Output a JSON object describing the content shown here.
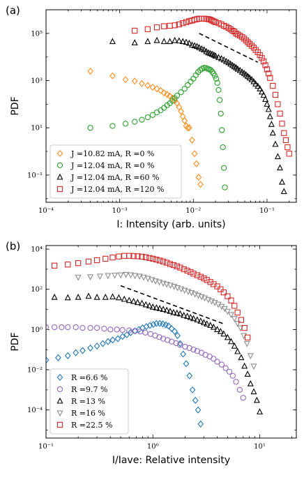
{
  "colors": {
    "orange": "#ff8c1a",
    "green": "#2ca02c",
    "black": "#000000",
    "red": "#d62728",
    "blue": "#1f77b4",
    "purple": "#9467bd",
    "gray": "#8c8c8c"
  },
  "chart_data": [
    {
      "type": "scatter",
      "panel_label": "(a)",
      "xlabel": "I: Intensity (arb. units)",
      "ylabel": "PDF",
      "xscale": "log",
      "yscale": "log",
      "xlim": [
        0.0001,
        0.25
      ],
      "ylim": [
        0.007,
        1000000
      ],
      "xticks": [
        {
          "v": 0.0001,
          "label": "10⁻⁴"
        },
        {
          "v": 0.001,
          "label": "10⁻³"
        },
        {
          "v": 0.01,
          "label": "10⁻²"
        },
        {
          "v": 0.1,
          "label": "10⁻¹"
        }
      ],
      "yticks": [
        {
          "v": 0.1,
          "label": "10⁻¹"
        },
        {
          "v": 10,
          "label": "10¹"
        },
        {
          "v": 1000,
          "label": "10³"
        },
        {
          "v": 100000,
          "label": "10⁵"
        }
      ],
      "legend_position": "lower-left",
      "guide_line": {
        "x": [
          0.012,
          0.075
        ],
        "y": [
          100000,
          6000
        ]
      },
      "series": [
        {
          "name": "J =10.82 mA, R =0 %",
          "marker": "diamond",
          "color": "orange",
          "x": [
            0.0004,
            0.0008,
            0.0012,
            0.0016,
            0.002,
            0.0024,
            0.0028,
            0.0032,
            0.0036,
            0.004,
            0.0044,
            0.0048,
            0.0052,
            0.0056,
            0.006,
            0.0064,
            0.0068,
            0.0072,
            0.0076,
            0.008,
            0.0084,
            0.0088,
            0.0096,
            0.0104,
            0.011,
            0.0118,
            0.0125
          ],
          "y": [
            2500,
            1600,
            1100,
            950,
            750,
            620,
            520,
            450,
            380,
            300,
            260,
            220,
            180,
            140,
            110,
            75,
            50,
            30,
            20,
            12,
            10,
            10,
            3,
            0.8,
            0.3,
            0.08,
            0.04
          ]
        },
        {
          "name": "J =12.04 mA, R =0 %",
          "marker": "circle",
          "color": "green",
          "x": [
            0.0004,
            0.0008,
            0.0012,
            0.0016,
            0.002,
            0.0024,
            0.0028,
            0.0032,
            0.0036,
            0.004,
            0.0044,
            0.0048,
            0.0052,
            0.0056,
            0.006,
            0.0068,
            0.0076,
            0.0084,
            0.0092,
            0.01,
            0.0108,
            0.0116,
            0.0124,
            0.0132,
            0.014,
            0.0148,
            0.0156,
            0.0164,
            0.0172,
            0.018,
            0.0188,
            0.0196,
            0.0204,
            0.0212,
            0.022,
            0.0228,
            0.0236,
            0.0244,
            0.0252,
            0.026,
            0.0268
          ],
          "y": [
            10,
            12,
            15,
            18,
            22,
            28,
            35,
            45,
            55,
            70,
            90,
            110,
            140,
            180,
            230,
            320,
            450,
            650,
            900,
            1200,
            1700,
            2300,
            2800,
            3200,
            3500,
            3400,
            3200,
            3000,
            2800,
            2400,
            2000,
            1600,
            1200,
            800,
            400,
            150,
            40,
            8,
            1.5,
            0.2,
            0.03
          ]
        },
        {
          "name": "J =12.04 mA, R =60 %",
          "marker": "triangle",
          "color": "black",
          "x": [
            0.0008,
            0.0016,
            0.0024,
            0.0032,
            0.004,
            0.0048,
            0.0056,
            0.0064,
            0.0072,
            0.008,
            0.0088,
            0.0096,
            0.0104,
            0.0112,
            0.012,
            0.013,
            0.014,
            0.015,
            0.016,
            0.017,
            0.018,
            0.019,
            0.02,
            0.022,
            0.024,
            0.026,
            0.028,
            0.03,
            0.032,
            0.034,
            0.036,
            0.038,
            0.04,
            0.043,
            0.046,
            0.049,
            0.052,
            0.055,
            0.058,
            0.062,
            0.066,
            0.07,
            0.075,
            0.08,
            0.085,
            0.09,
            0.095,
            0.1,
            0.105,
            0.11,
            0.115,
            0.12,
            0.13,
            0.14,
            0.15,
            0.16,
            0.17
          ],
          "y": [
            45000,
            40000,
            45000,
            50000,
            45000,
            45000,
            50000,
            48000,
            45000,
            42000,
            38000,
            32000,
            30000,
            28000,
            25000,
            22000,
            20000,
            17000,
            15000,
            14000,
            13000,
            12000,
            11000,
            9500,
            8500,
            7500,
            6500,
            5800,
            5000,
            4400,
            3900,
            3500,
            3100,
            2700,
            2300,
            2000,
            1750,
            1500,
            1300,
            1100,
            900,
            720,
            580,
            450,
            330,
            240,
            160,
            100,
            60,
            30,
            14,
            6,
            2,
            0.6,
            0.2,
            0.05,
            0.02
          ]
        },
        {
          "name": "J =12.04 mA, R =120 %",
          "marker": "square",
          "color": "red",
          "x": [
            0.0016,
            0.0024,
            0.0032,
            0.004,
            0.0048,
            0.0056,
            0.0064,
            0.0072,
            0.008,
            0.0088,
            0.0096,
            0.0104,
            0.0112,
            0.012,
            0.013,
            0.014,
            0.015,
            0.016,
            0.017,
            0.018,
            0.019,
            0.02,
            0.022,
            0.024,
            0.026,
            0.028,
            0.03,
            0.032,
            0.034,
            0.036,
            0.038,
            0.04,
            0.043,
            0.046,
            0.049,
            0.052,
            0.055,
            0.058,
            0.062,
            0.066,
            0.07,
            0.075,
            0.08,
            0.085,
            0.09,
            0.095,
            0.1,
            0.105,
            0.11,
            0.12,
            0.13,
            0.14,
            0.15,
            0.16,
            0.17,
            0.18,
            0.19,
            0.2
          ],
          "y": [
            130000,
            150000,
            180000,
            200000,
            210000,
            220000,
            240000,
            270000,
            300000,
            330000,
            350000,
            380000,
            400000,
            420000,
            420000,
            420000,
            410000,
            400000,
            380000,
            350000,
            320000,
            300000,
            270000,
            240000,
            210000,
            190000,
            170000,
            150000,
            130000,
            120000,
            100000,
            90000,
            80000,
            70000,
            60000,
            50000,
            42000,
            36000,
            30000,
            25000,
            20000,
            16000,
            12000,
            9000,
            6500,
            4500,
            3000,
            2000,
            1300,
            600,
            250,
            100,
            40,
            15,
            6,
            3,
            1.5,
            0.8
          ]
        }
      ]
    },
    {
      "type": "scatter",
      "panel_label": "(b)",
      "xlabel": "I/Iave: Relative intensity",
      "ylabel": "PDF",
      "xscale": "log",
      "yscale": "log",
      "xlim": [
        0.1,
        22
      ],
      "ylim": [
        4e-06,
        15000
      ],
      "xticks": [
        {
          "v": 0.1,
          "label": "10⁻¹"
        },
        {
          "v": 1,
          "label": "10⁰"
        },
        {
          "v": 10,
          "label": "10¹"
        }
      ],
      "yticks": [
        {
          "v": 0.0001,
          "label": "10⁻⁴"
        },
        {
          "v": 0.01,
          "label": "10⁻²"
        },
        {
          "v": 1,
          "label": "10⁰"
        },
        {
          "v": 100,
          "label": "10²"
        },
        {
          "v": 10000,
          "label": "10⁴"
        }
      ],
      "legend_position": "lower-left",
      "guide_line": {
        "x": [
          0.5,
          4.5
        ],
        "y": [
          150,
          2
        ]
      },
      "series": [
        {
          "name": "R =6.6 %",
          "marker": "diamond",
          "color": "blue",
          "x": [
            0.1,
            0.13,
            0.16,
            0.19,
            0.22,
            0.26,
            0.3,
            0.34,
            0.38,
            0.42,
            0.47,
            0.52,
            0.57,
            0.62,
            0.68,
            0.74,
            0.8,
            0.87,
            0.94,
            1.01,
            1.08,
            1.16,
            1.24,
            1.32,
            1.4,
            1.5,
            1.6,
            1.7,
            1.8,
            1.92,
            2.05,
            2.2,
            2.35,
            2.5,
            2.65,
            2.8
          ],
          "y": [
            0.03,
            0.04,
            0.05,
            0.07,
            0.09,
            0.12,
            0.15,
            0.2,
            0.25,
            0.3,
            0.35,
            0.45,
            0.55,
            0.7,
            0.85,
            1.0,
            1.2,
            1.4,
            1.6,
            1.8,
            2.0,
            2.0,
            1.9,
            1.7,
            1.5,
            1.1,
            0.8,
            0.5,
            0.2,
            0.06,
            0.02,
            0.005,
            0.001,
            0.0003,
            0.0001,
            2e-05
          ]
        },
        {
          "name": "R =9.7 %",
          "marker": "circle",
          "color": "purple",
          "x": [
            0.1,
            0.12,
            0.14,
            0.16,
            0.19,
            0.22,
            0.26,
            0.3,
            0.35,
            0.4,
            0.46,
            0.52,
            0.6,
            0.68,
            0.76,
            0.85,
            0.95,
            1.05,
            1.15,
            1.25,
            1.37,
            1.5,
            1.65,
            1.8,
            2.0,
            2.2,
            2.4,
            2.6,
            2.85,
            3.1,
            3.4,
            3.7,
            4.0,
            4.4,
            4.8,
            5.2,
            5.6,
            6.0,
            6.5,
            7.0
          ],
          "y": [
            1.3,
            1.3,
            1.3,
            1.3,
            1.3,
            1.2,
            1.2,
            1.2,
            1.1,
            1.0,
            1.0,
            0.95,
            0.9,
            0.85,
            0.8,
            0.7,
            0.6,
            0.5,
            0.42,
            0.35,
            0.3,
            0.25,
            0.21,
            0.17,
            0.14,
            0.12,
            0.1,
            0.085,
            0.07,
            0.055,
            0.045,
            0.035,
            0.025,
            0.018,
            0.012,
            0.008,
            0.005,
            0.0025,
            0.001,
            0.0004
          ]
        },
        {
          "name": "R =13 %",
          "marker": "triangle",
          "color": "black",
          "x": [
            0.12,
            0.16,
            0.2,
            0.25,
            0.3,
            0.36,
            0.42,
            0.48,
            0.54,
            0.6,
            0.66,
            0.72,
            0.79,
            0.86,
            0.93,
            1.0,
            1.08,
            1.16,
            1.25,
            1.35,
            1.45,
            1.56,
            1.68,
            1.8,
            1.95,
            2.1,
            2.25,
            2.4,
            2.6,
            2.8,
            3.0,
            3.2,
            3.45,
            3.7,
            4.0,
            4.3,
            4.6,
            5.0,
            5.4,
            5.8,
            6.2,
            6.7,
            7.2,
            7.7,
            8.2,
            8.8,
            9.4,
            10.0
          ],
          "y": [
            40,
            38,
            40,
            45,
            40,
            40,
            42,
            38,
            32,
            28,
            25,
            22,
            20,
            17,
            15,
            13,
            12,
            11,
            10,
            9,
            8,
            7,
            6.5,
            6,
            5,
            4.5,
            4,
            3.5,
            3,
            2.6,
            2.2,
            1.9,
            1.6,
            1.3,
            1.0,
            0.8,
            0.6,
            0.4,
            0.25,
            0.15,
            0.08,
            0.04,
            0.015,
            0.006,
            0.002,
            0.0008,
            0.0003,
            8e-05
          ]
        },
        {
          "name": "R =16 %",
          "marker": "triangle-down",
          "color": "gray",
          "x": [
            0.2,
            0.26,
            0.32,
            0.38,
            0.44,
            0.5,
            0.56,
            0.62,
            0.68,
            0.75,
            0.82,
            0.9,
            0.98,
            1.06,
            1.15,
            1.25,
            1.35,
            1.46,
            1.58,
            1.7,
            1.84,
            1.98,
            2.14,
            2.3,
            2.48,
            2.66,
            2.86,
            3.06,
            3.3,
            3.55,
            3.8,
            4.1,
            4.4,
            4.7,
            5.0,
            5.4,
            5.8,
            6.2,
            6.6,
            7.1,
            7.6,
            8.2,
            8.8
          ],
          "y": [
            400,
            420,
            450,
            480,
            500,
            520,
            550,
            520,
            480,
            450,
            400,
            350,
            300,
            260,
            230,
            200,
            180,
            160,
            140,
            120,
            105,
            90,
            78,
            68,
            58,
            50,
            43,
            37,
            31,
            26,
            22,
            18,
            14,
            11,
            8,
            5.5,
            3.5,
            2,
            1.2,
            0.5,
            0.2,
            0.05,
            0.015
          ]
        },
        {
          "name": "R =22.5 %",
          "marker": "square",
          "color": "red",
          "x": [
            0.12,
            0.16,
            0.2,
            0.25,
            0.3,
            0.36,
            0.42,
            0.48,
            0.54,
            0.6,
            0.66,
            0.72,
            0.79,
            0.86,
            0.93,
            1.0,
            1.08,
            1.16,
            1.25,
            1.35,
            1.45,
            1.56,
            1.68,
            1.8,
            1.95,
            2.1,
            2.25,
            2.4,
            2.6,
            2.8,
            3.0,
            3.2,
            3.45,
            3.7,
            4.0,
            4.3,
            4.6,
            5.0,
            5.4,
            5.8,
            6.2,
            6.7,
            7.2,
            7.7
          ],
          "y": [
            1500,
            1700,
            2000,
            2400,
            2800,
            3300,
            3800,
            4300,
            4600,
            4600,
            4500,
            4400,
            4200,
            3900,
            3600,
            3300,
            3000,
            2700,
            2400,
            2100,
            1800,
            1600,
            1400,
            1200,
            1000,
            850,
            720,
            600,
            500,
            420,
            350,
            290,
            230,
            180,
            140,
            100,
            70,
            45,
            28,
            15,
            7,
            3,
            1.2,
            0.4
          ]
        }
      ]
    }
  ]
}
